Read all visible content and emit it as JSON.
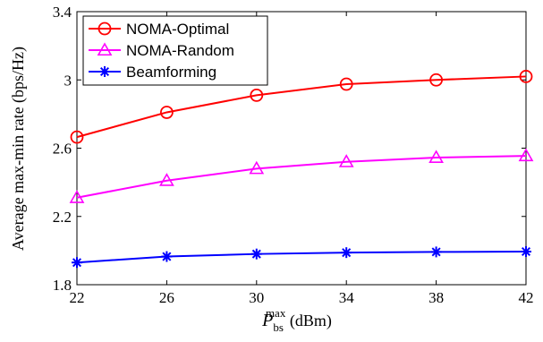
{
  "chart_data": {
    "type": "line",
    "x": [
      22,
      26,
      30,
      34,
      38,
      42
    ],
    "xticks": [
      "22",
      "26",
      "30",
      "34",
      "38",
      "42"
    ],
    "yticks": [
      "1.8",
      "2.2",
      "2.6",
      "3",
      "3.4"
    ],
    "xlim": [
      22,
      42
    ],
    "ylim": [
      1.8,
      3.4
    ],
    "xlabel": {
      "main": "P",
      "sup": "max",
      "sub": "bs",
      "unit": " (dBm)"
    },
    "ylabel": "Average max-min rate (bps/Hz)",
    "legend_position": "top-left",
    "grid": false,
    "series": [
      {
        "name": "NOMA-Optimal",
        "color": "#ff0000",
        "marker": "circle",
        "values": [
          2.665,
          2.81,
          2.91,
          2.975,
          3.0,
          3.02
        ]
      },
      {
        "name": "NOMA-Random",
        "color": "#ff00ff",
        "marker": "triangle",
        "values": [
          2.31,
          2.41,
          2.48,
          2.52,
          2.545,
          2.555
        ]
      },
      {
        "name": "Beamforming",
        "color": "#0000ff",
        "marker": "star",
        "values": [
          1.93,
          1.965,
          1.98,
          1.988,
          1.992,
          1.994
        ]
      }
    ]
  }
}
